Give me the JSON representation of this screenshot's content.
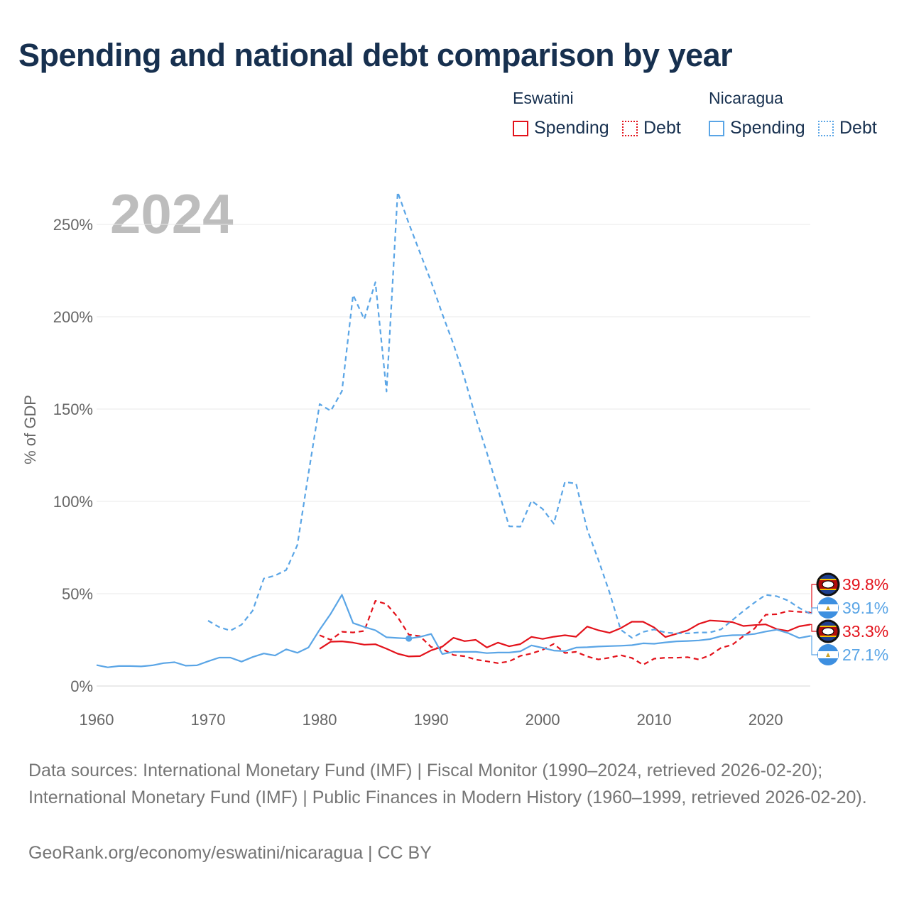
{
  "title": "Spending and national debt comparison by year",
  "year_label": "2024",
  "legend": {
    "groups": [
      {
        "country": "Eswatini",
        "spending_label": "Spending",
        "debt_label": "Debt",
        "color": "#e3121b"
      },
      {
        "country": "Nicaragua",
        "spending_label": "Spending",
        "debt_label": "Debt",
        "color": "#5aa5e6"
      }
    ]
  },
  "footer": {
    "sources": "Data sources: International Monetary Fund (IMF) | Fiscal Monitor (1990–2024, retrieved 2026-02-20); International Monetary Fund (IMF) | Public Finances in Modern History (1960–1999, retrieved 2026-02-20).",
    "credit": "GeoRank.org/economy/eswatini/nicaragua | CC BY"
  },
  "chart_data": {
    "type": "line",
    "title": "Spending and national debt comparison by year",
    "xlabel": "",
    "ylabel": "% of GDP",
    "xlim": [
      1960,
      2024
    ],
    "ylim": [
      0,
      265
    ],
    "xticks": [
      1960,
      1970,
      1980,
      1990,
      2000,
      2010,
      2020
    ],
    "yticks": [
      0,
      50,
      100,
      150,
      200,
      250
    ],
    "ytick_labels": [
      "0%",
      "50%",
      "100%",
      "150%",
      "200%",
      "250%"
    ],
    "series": [
      {
        "name": "Eswatini Spending",
        "country": "Eswatini",
        "kind": "Spending",
        "color": "#e3121b",
        "dash": "solid",
        "end_label": "33.3%",
        "x": [
          1980,
          1981,
          1982,
          1983,
          1984,
          1985,
          1986,
          1987,
          1988,
          1989,
          1990,
          1991,
          1992,
          1993,
          1994,
          1995,
          1996,
          1997,
          1998,
          1999,
          2000,
          2001,
          2002,
          2003,
          2004,
          2005,
          2006,
          2007,
          2008,
          2009,
          2010,
          2011,
          2012,
          2013,
          2014,
          2015,
          2016,
          2017,
          2018,
          2019,
          2020,
          2021,
          2022,
          2023,
          2024
        ],
        "values": [
          20.1,
          24.0,
          24.2,
          23.5,
          22.4,
          22.6,
          20.2,
          17.5,
          16.0,
          16.2,
          19.3,
          21.3,
          26.1,
          24.3,
          25.0,
          20.9,
          23.5,
          21.5,
          22.7,
          26.6,
          25.5,
          26.7,
          27.5,
          26.7,
          32.2,
          30.2,
          28.8,
          31.3,
          34.8,
          34.8,
          31.7,
          26.5,
          28.3,
          30.1,
          33.6,
          35.5,
          35.1,
          34.6,
          32.5,
          33.0,
          33.4,
          30.8,
          29.8,
          32.3,
          33.3
        ]
      },
      {
        "name": "Eswatini Debt",
        "country": "Eswatini",
        "kind": "Debt",
        "color": "#e3121b",
        "dash": "dashed",
        "end_label": "39.8%",
        "x": [
          1980,
          1981,
          1982,
          1983,
          1984,
          1985,
          1986,
          1987,
          1988,
          1989,
          1990,
          1991,
          1992,
          1993,
          1994,
          1995,
          1996,
          1997,
          1998,
          1999,
          2000,
          2001,
          2002,
          2003,
          2004,
          2005,
          2006,
          2007,
          2008,
          2009,
          2010,
          2011,
          2012,
          2013,
          2014,
          2015,
          2016,
          2017,
          2018,
          2019,
          2020,
          2021,
          2022,
          2023,
          2024
        ],
        "values": [
          27.5,
          25.0,
          29.4,
          29.0,
          29.8,
          46.1,
          44.4,
          37.3,
          27.8,
          27.0,
          21.1,
          20.1,
          16.8,
          16.1,
          14.3,
          13.4,
          12.4,
          13.3,
          16.3,
          17.6,
          19.6,
          22.8,
          17.9,
          18.5,
          16.0,
          14.4,
          15.3,
          16.7,
          15.2,
          11.5,
          14.8,
          15.3,
          15.3,
          15.6,
          14.4,
          16.6,
          20.7,
          22.3,
          27.0,
          31.1,
          38.6,
          38.9,
          40.6,
          40.2,
          39.8
        ]
      },
      {
        "name": "Nicaragua Spending",
        "country": "Nicaragua",
        "kind": "Spending",
        "color": "#5aa5e6",
        "dash": "solid",
        "end_label": "27.1%",
        "x": [
          1960,
          1961,
          1962,
          1963,
          1964,
          1965,
          1966,
          1967,
          1968,
          1969,
          1970,
          1971,
          1972,
          1973,
          1974,
          1975,
          1976,
          1977,
          1978,
          1979,
          1980,
          1981,
          1982,
          1983,
          1984,
          1985,
          1986,
          1987,
          1988,
          1989,
          1990,
          1991,
          1992,
          1993,
          1994,
          1995,
          1996,
          1997,
          1998,
          1999,
          2000,
          2001,
          2002,
          2003,
          2004,
          2005,
          2006,
          2007,
          2008,
          2009,
          2010,
          2011,
          2012,
          2013,
          2014,
          2015,
          2016,
          2017,
          2018,
          2019,
          2020,
          2021,
          2022,
          2023,
          2024
        ],
        "values": [
          11.3,
          10.1,
          10.8,
          10.8,
          10.6,
          11.2,
          12.4,
          12.9,
          11.0,
          11.2,
          13.4,
          15.4,
          15.4,
          13.2,
          15.7,
          17.6,
          16.5,
          19.9,
          18.0,
          20.9,
          30.5,
          39.2,
          49.4,
          34.1,
          32.0,
          30.2,
          26.4,
          26.0,
          25.7,
          26.6,
          28.2,
          17.3,
          18.5,
          18.5,
          18.5,
          17.8,
          18.1,
          18.1,
          18.8,
          22.0,
          20.7,
          19.2,
          18.9,
          20.8,
          21.0,
          21.4,
          21.6,
          21.8,
          22.1,
          23.1,
          22.9,
          23.6,
          24.2,
          24.4,
          24.7,
          25.4,
          27.0,
          27.5,
          27.6,
          28.2,
          29.5,
          30.5,
          28.7,
          26.0,
          27.1
        ]
      },
      {
        "name": "Nicaragua Debt",
        "country": "Nicaragua",
        "kind": "Debt",
        "color": "#5aa5e6",
        "dash": "dashed",
        "end_label": "39.1%",
        "x": [
          1970,
          1971,
          1972,
          1973,
          1974,
          1975,
          1976,
          1977,
          1978,
          1979,
          1980,
          1981,
          1982,
          1983,
          1984,
          1985,
          1986,
          1987,
          1988,
          1989,
          1990,
          1991,
          1992,
          1993,
          1994,
          1995,
          1996,
          1997,
          1998,
          1999,
          2000,
          2001,
          2002,
          2003,
          2004,
          2005,
          2006,
          2007,
          2008,
          2009,
          2010,
          2011,
          2012,
          2013,
          2014,
          2015,
          2016,
          2017,
          2018,
          2019,
          2020,
          2021,
          2022,
          2023,
          2024
        ],
        "values": [
          35.4,
          31.9,
          30.0,
          33.2,
          40.8,
          58.2,
          59.8,
          62.8,
          76.3,
          115.1,
          152.7,
          149.0,
          159.7,
          211.8,
          198.7,
          218.7,
          159.5,
          267.5,
          250.5,
          234.7,
          219.0,
          201.5,
          185.2,
          166.6,
          145.4,
          126.3,
          106.4,
          86.5,
          86.3,
          100.3,
          95.9,
          87.9,
          110.5,
          109.6,
          84.7,
          68.3,
          50.7,
          30.5,
          26.1,
          29.3,
          30.6,
          29.0,
          28.5,
          28.5,
          29.0,
          29.0,
          30.7,
          35.6,
          40.6,
          45.2,
          49.4,
          48.6,
          46.3,
          42.3,
          39.1
        ]
      }
    ]
  }
}
